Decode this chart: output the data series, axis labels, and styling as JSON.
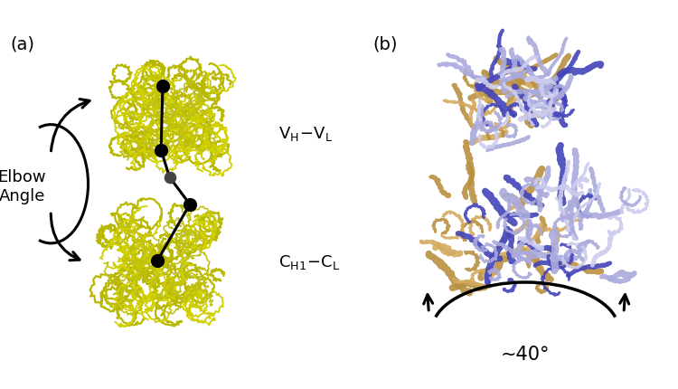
{
  "panel_a_label": "(a)",
  "panel_b_label": "(b)",
  "elbow_angle_text": "Elbow\nAngle",
  "angle_label": "~40°",
  "background_color": "#ffffff",
  "protein_yellow": "#c8c832",
  "protein_blue_dark": "#4444bb",
  "protein_blue_light": "#8888cc",
  "protein_blue_pale": "#aaaadd",
  "protein_gold_dark": "#b89040",
  "protein_gold_light": "#d4aa60",
  "ball_black": "#111111",
  "ball_gray": "#555555",
  "figsize": [
    7.5,
    4.31
  ],
  "dpi": 100
}
